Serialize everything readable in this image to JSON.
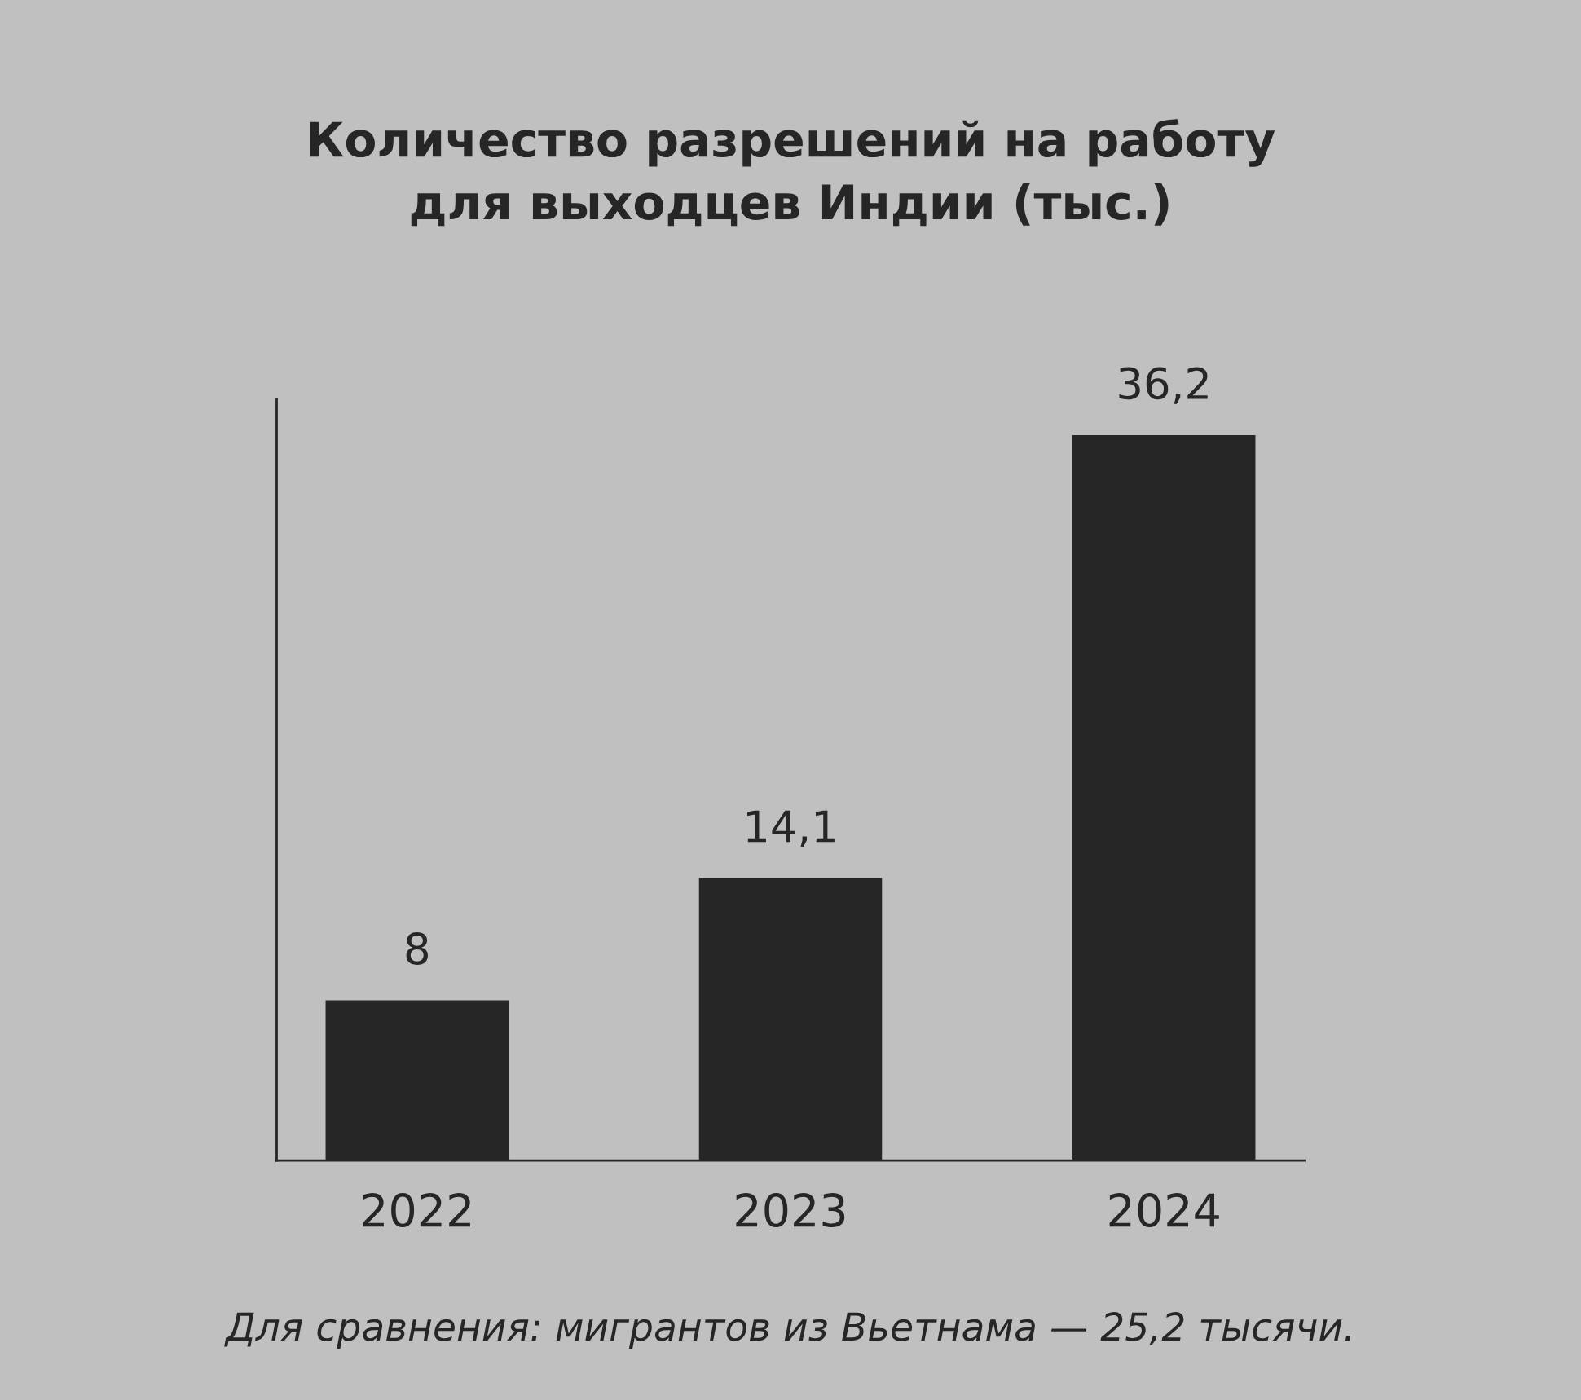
{
  "chart_data": {
    "type": "bar",
    "title": "Количество разрешений на работу\nдля выходцев Индии (тыс.)",
    "categories": [
      "2022",
      "2023",
      "2024"
    ],
    "values": [
      8,
      14.1,
      36.2
    ],
    "value_labels": [
      "8",
      "14,1",
      "36,2"
    ],
    "color": "#262626",
    "ylim": [
      0,
      38
    ],
    "tick_labels": "x",
    "grid": false,
    "legend": false,
    "annotations": [
      "Для сравнения: мигрантов из Вьетнама — 25,2 тысячи."
    ]
  }
}
